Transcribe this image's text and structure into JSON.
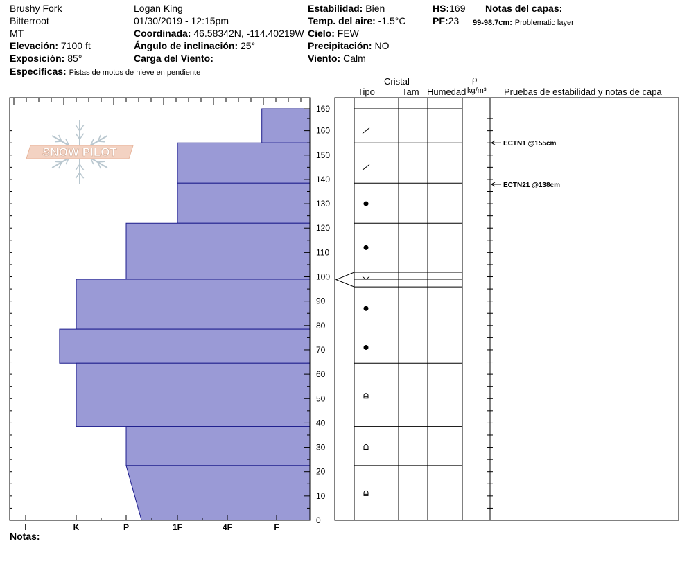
{
  "header": {
    "location": "Brushy Fork",
    "range": "Bitterroot",
    "state": "MT",
    "elevation_label": "Elevación:",
    "elevation_value": "7100 ft",
    "aspect_label": "Exposición:",
    "aspect_value": "85°",
    "specifics_label": "Especificas:",
    "specifics_value": "Pistas de motos de nieve en pendiente",
    "observer": "Logan King",
    "datetime": "01/30/2019 - 12:15pm",
    "coord_label": "Coordinada:",
    "coord_value": "46.58342N, -114.40219W",
    "slope_label": "Ángulo de inclinación:",
    "slope_value": "25°",
    "wind_load_label": "Carga del Viento:",
    "stability_label": "Estabilidad:",
    "stability_value": "Bien",
    "air_temp_label": "Temp. del aire:",
    "air_temp_value": "-1.5°C",
    "sky_label": "Cielo:",
    "sky_value": "FEW",
    "precip_label": "Precipitación:",
    "precip_value": "NO",
    "wind_label": "Viento:",
    "wind_value": "Calm",
    "hs_label": "HS:",
    "hs_value": "169",
    "pf_label": "PF:",
    "pf_value": "23",
    "layer_notes_label": "Notas del capas:",
    "layer_note_range": "99-98.7cm:",
    "layer_note_text": "Problematic layer"
  },
  "logo_text": "SNOW PILOT",
  "footer": {
    "notes_label": "Notas:"
  },
  "columns": {
    "crystal": "Cristal",
    "type": "Tipo",
    "size": "Tam",
    "moisture": "Humedad",
    "rho": "ρ",
    "density_unit": "kg/m³",
    "tests": "Pruebas de estabilidad y notas de capa"
  },
  "chart_data": {
    "type": "snow-profile",
    "y_range": [
      0,
      169
    ],
    "y_ticks": [
      0,
      10,
      20,
      30,
      40,
      50,
      60,
      70,
      80,
      90,
      100,
      110,
      120,
      130,
      140,
      150,
      160,
      169
    ],
    "hardness_scale": [
      "I",
      "K",
      "P",
      "1F",
      "4F",
      "F"
    ],
    "hardness_profile": [
      {
        "top": 169,
        "bottom": 155,
        "hardness_top": 5.7,
        "hardness_bottom": 5.7
      },
      {
        "top": 155,
        "bottom": 138.5,
        "hardness_top": 4.0,
        "hardness_bottom": 4.0
      },
      {
        "top": 138.5,
        "bottom": 122,
        "hardness_top": 4.0,
        "hardness_bottom": 4.0
      },
      {
        "top": 122,
        "bottom": 99,
        "hardness_top": 3.0,
        "hardness_bottom": 3.0
      },
      {
        "top": 99,
        "bottom": 78.5,
        "hardness_top": 2.0,
        "hardness_bottom": 2.0
      },
      {
        "top": 78.5,
        "bottom": 64.5,
        "hardness_top": 1.67,
        "hardness_bottom": 1.67
      },
      {
        "top": 64.5,
        "bottom": 38.5,
        "hardness_top": 2.0,
        "hardness_bottom": 2.0
      },
      {
        "top": 38.5,
        "bottom": 22.5,
        "hardness_top": 3.0,
        "hardness_bottom": 3.0
      },
      {
        "top": 22.5,
        "bottom": 0,
        "hardness_top": 3.0,
        "hardness_bottom": 3.3
      }
    ],
    "layer_boundaries": [
      169,
      155,
      138.5,
      122,
      99,
      64.5,
      38.5,
      22.5
    ],
    "crystal_markers": [
      {
        "depth": 160,
        "symbol": "slash"
      },
      {
        "depth": 145,
        "symbol": "slash"
      },
      {
        "depth": 130,
        "symbol": "dot"
      },
      {
        "depth": 112,
        "symbol": "dot"
      },
      {
        "depth": 99.5,
        "symbol": "vee"
      },
      {
        "depth": 87,
        "symbol": "dot"
      },
      {
        "depth": 71,
        "symbol": "dot"
      },
      {
        "depth": 51,
        "symbol": "square"
      },
      {
        "depth": 30,
        "symbol": "square"
      },
      {
        "depth": 11,
        "symbol": "square"
      }
    ],
    "problem_layer": {
      "top": 99,
      "bottom": 98.7
    },
    "tests": [
      {
        "depth": 155,
        "label": "ECTN1 @155cm"
      },
      {
        "depth": 138,
        "label": "ECTN21 @138cm"
      }
    ]
  }
}
